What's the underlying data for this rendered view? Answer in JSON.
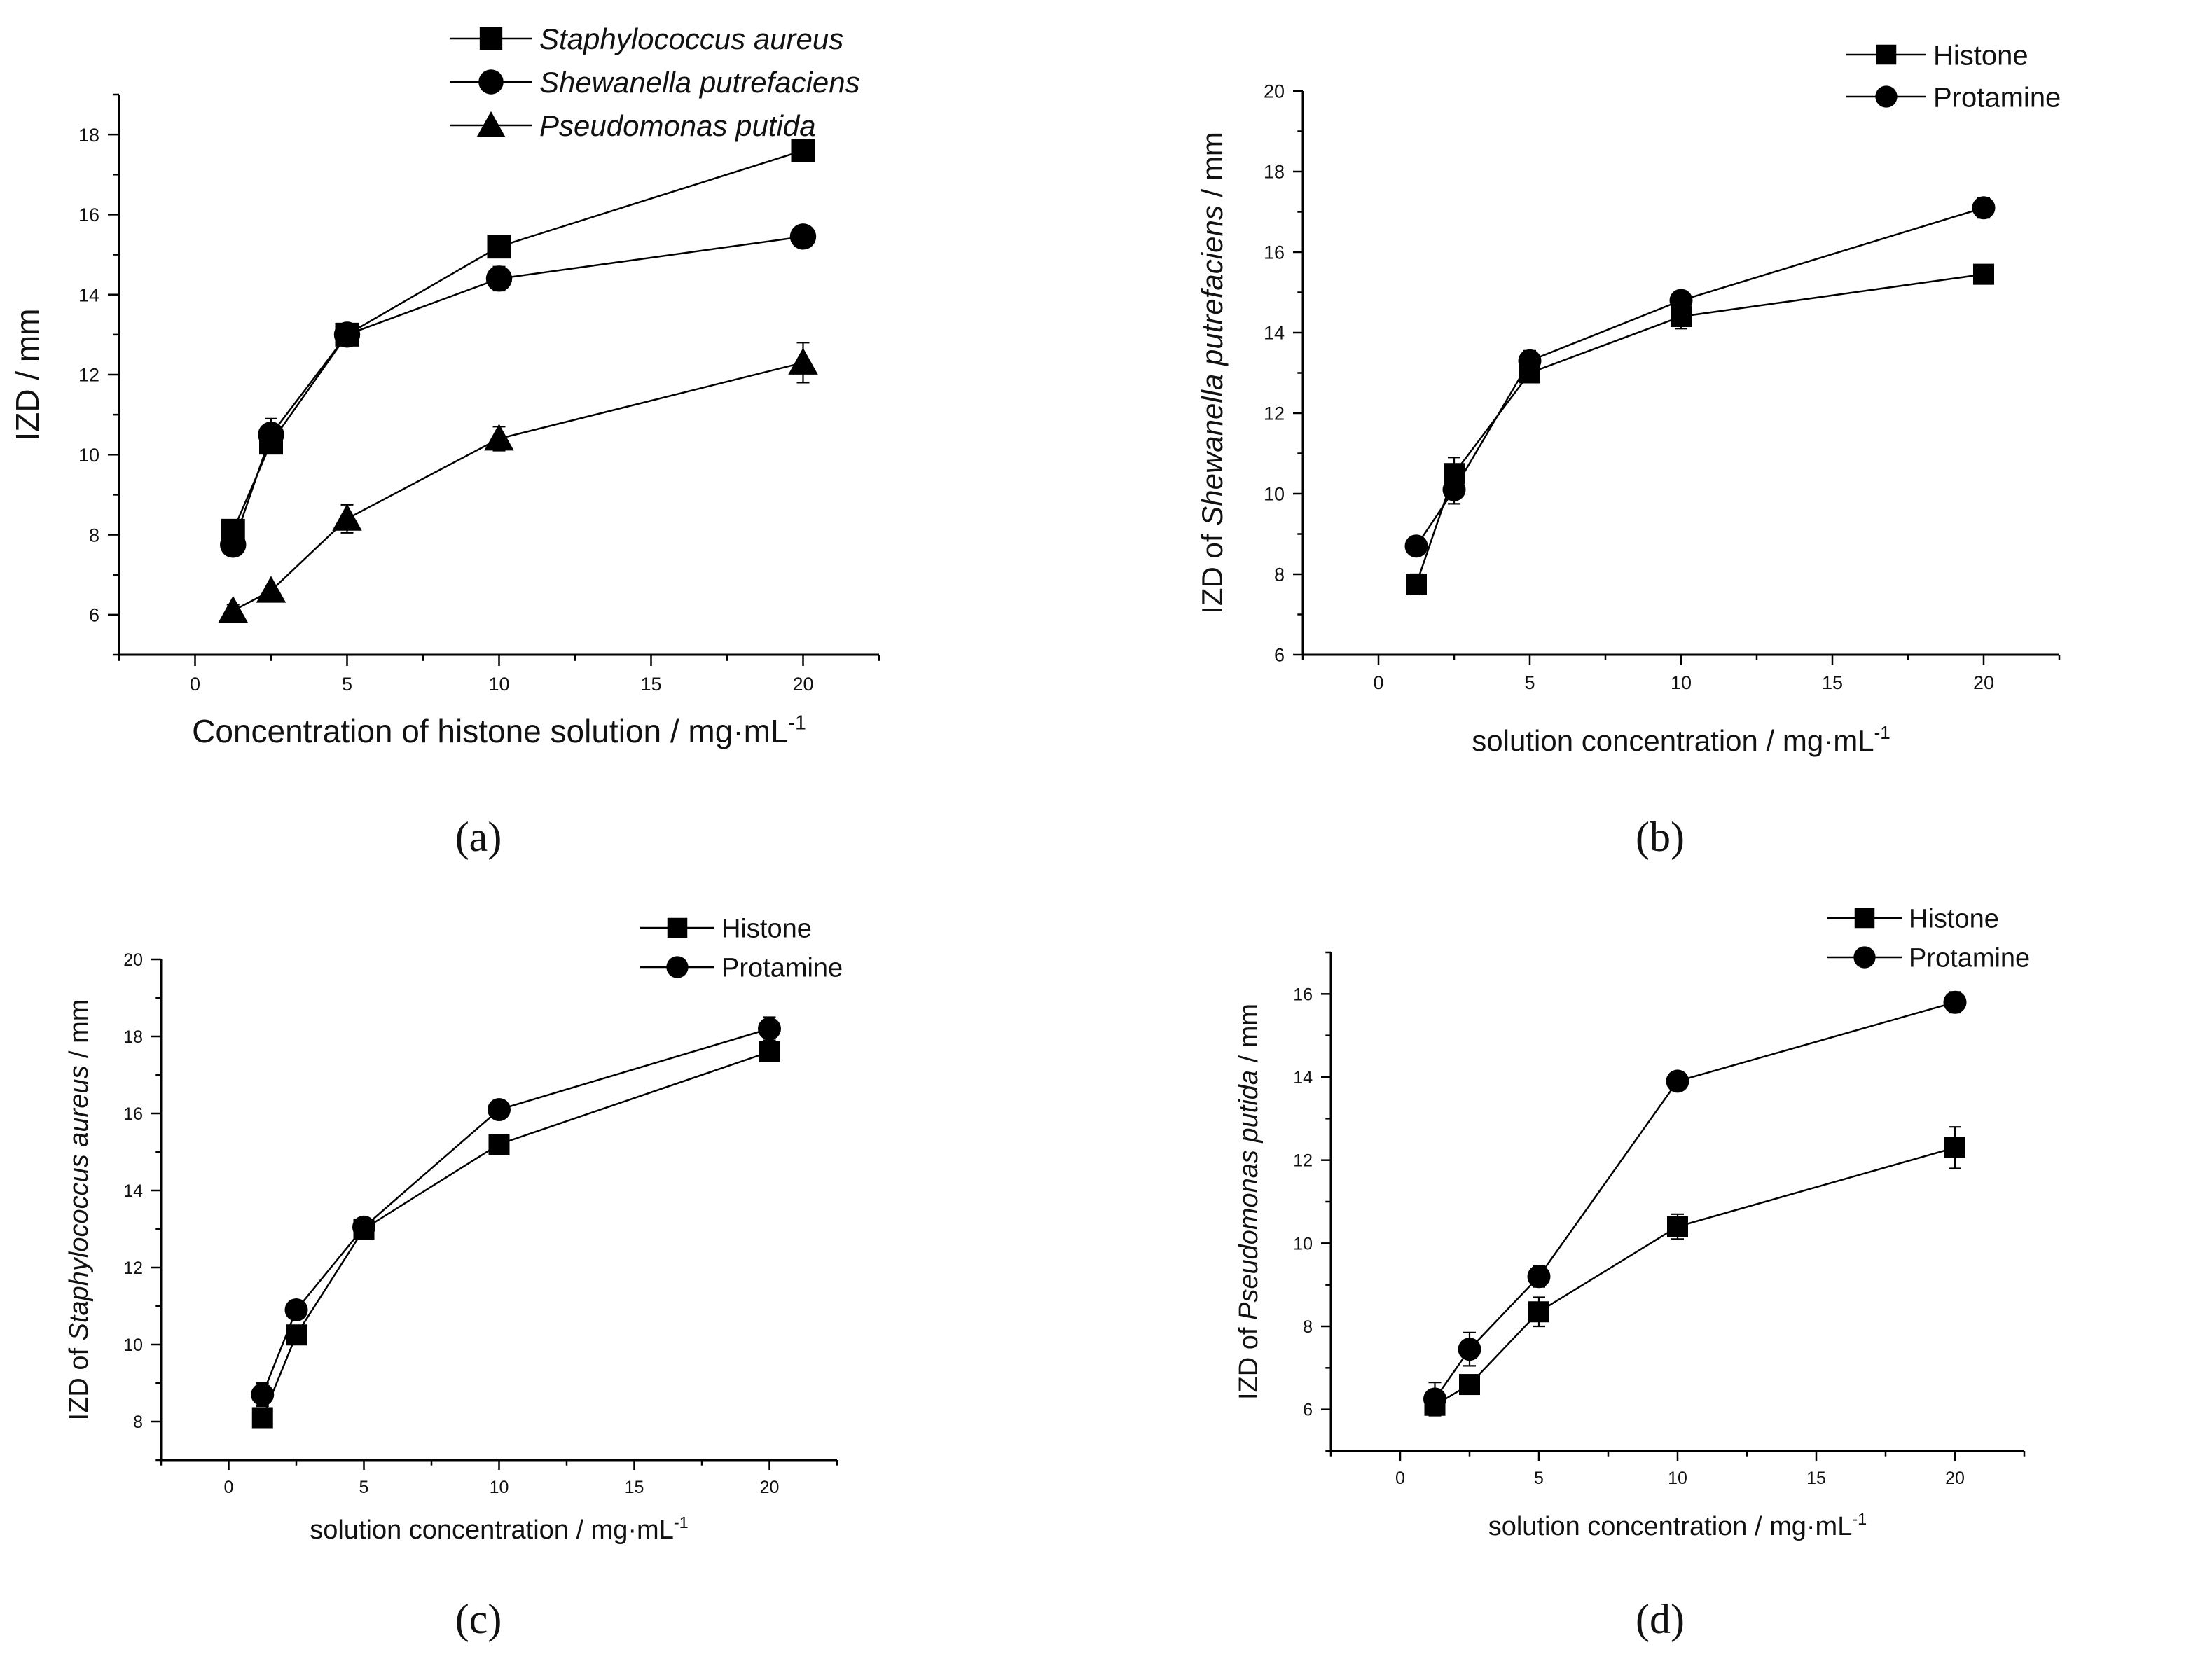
{
  "figure": {
    "panel_labels": [
      "(a)",
      "(b)",
      "(c)",
      "(d)"
    ]
  },
  "colors": {
    "line": "#000000",
    "background": "#ffffff"
  },
  "chart_data": [
    {
      "id": "a",
      "type": "line",
      "title": "",
      "xlabel": "Concentration of histone solution / mg·mL",
      "xlabel_sup": "-1",
      "ylabel": "IZD / mm",
      "xlim": [
        -2.5,
        22.5
      ],
      "ylim": [
        5,
        19
      ],
      "xticks": [
        0,
        5,
        10,
        15,
        20
      ],
      "yticks": [
        6,
        8,
        10,
        12,
        14,
        16,
        18
      ],
      "legend_position": "top-right",
      "series": [
        {
          "name": "Staphylococcus aureus",
          "italic": true,
          "marker": "square",
          "x": [
            1.25,
            2.5,
            5,
            10,
            20
          ],
          "y": [
            8.1,
            10.3,
            13.0,
            15.2,
            17.6
          ],
          "err": [
            0.15,
            0.15,
            0.1,
            0.1,
            0.2
          ]
        },
        {
          "name": "Shewanella putrefaciens",
          "italic": true,
          "marker": "circle",
          "x": [
            1.25,
            2.5,
            5,
            10,
            20
          ],
          "y": [
            7.75,
            10.5,
            13.0,
            14.4,
            15.45
          ],
          "err": [
            0.2,
            0.4,
            0.15,
            0.3,
            0.15
          ]
        },
        {
          "name": "Pseudomonas putida",
          "italic": true,
          "marker": "triangle",
          "x": [
            1.25,
            2.5,
            5,
            10,
            20
          ],
          "y": [
            6.1,
            6.6,
            8.4,
            10.4,
            12.3
          ],
          "err": [
            0.15,
            0.1,
            0.35,
            0.3,
            0.5
          ]
        }
      ]
    },
    {
      "id": "b",
      "type": "line",
      "title": "",
      "xlabel": "solution concentration / mg·mL",
      "xlabel_sup": "-1",
      "ylabel": "IZD of Shewanella putrefaciens / mm",
      "ylabel_parts": [
        "IZD of ",
        "Shewanella putrefaciens",
        " / mm"
      ],
      "xlim": [
        -2.5,
        22.5
      ],
      "ylim": [
        6,
        20
      ],
      "xticks": [
        0,
        5,
        10,
        15,
        20
      ],
      "yticks": [
        6,
        8,
        10,
        12,
        14,
        16,
        18,
        20
      ],
      "legend_position": "top-right",
      "series": [
        {
          "name": "Histone",
          "italic": false,
          "marker": "square",
          "x": [
            1.25,
            2.5,
            5,
            10,
            20
          ],
          "y": [
            7.75,
            10.5,
            13.0,
            14.4,
            15.45
          ],
          "err": [
            0.25,
            0.4,
            0.15,
            0.3,
            0.1
          ]
        },
        {
          "name": "Protamine",
          "italic": false,
          "marker": "circle",
          "x": [
            1.25,
            2.5,
            5,
            10,
            20
          ],
          "y": [
            8.7,
            10.1,
            13.3,
            14.8,
            17.1
          ],
          "err": [
            0.2,
            0.35,
            0.25,
            0.2,
            0.25
          ]
        }
      ]
    },
    {
      "id": "c",
      "type": "line",
      "title": "",
      "xlabel": "solution concentration / mg·mL",
      "xlabel_sup": "-1",
      "ylabel": "IZD of Staphylococcus aureus / mm",
      "ylabel_parts": [
        "IZD of ",
        "Staphylococcus aureus",
        " / mm"
      ],
      "xlim": [
        -2.5,
        22.5
      ],
      "ylim": [
        7,
        20
      ],
      "xticks": [
        0,
        5,
        10,
        15,
        20
      ],
      "yticks": [
        8,
        10,
        12,
        14,
        16,
        18,
        20
      ],
      "legend_position": "top-right",
      "series": [
        {
          "name": "Histone",
          "italic": false,
          "marker": "square",
          "x": [
            1.25,
            2.5,
            5,
            10,
            20
          ],
          "y": [
            8.1,
            10.25,
            13.0,
            15.2,
            17.6
          ],
          "err": [
            0.15,
            0.1,
            0.15,
            0.1,
            0.2
          ]
        },
        {
          "name": "Protamine",
          "italic": false,
          "marker": "circle",
          "x": [
            1.25,
            2.5,
            5,
            10,
            20
          ],
          "y": [
            8.7,
            10.9,
            13.05,
            16.1,
            18.2
          ],
          "err": [
            0.3,
            0.2,
            0.15,
            0.2,
            0.3
          ]
        }
      ]
    },
    {
      "id": "d",
      "type": "line",
      "title": "",
      "xlabel": "solution concentration / mg·mL",
      "xlabel_sup": "-1",
      "ylabel": "IZD of Pseudomonas putida / mm",
      "ylabel_parts": [
        "IZD of ",
        "Pseudomonas putida",
        " / mm"
      ],
      "xlim": [
        -2.5,
        22.5
      ],
      "ylim": [
        5,
        17
      ],
      "xticks": [
        0,
        5,
        10,
        15,
        20
      ],
      "yticks": [
        6,
        8,
        10,
        12,
        14,
        16
      ],
      "legend_position": "top-right",
      "series": [
        {
          "name": "Histone",
          "italic": false,
          "marker": "square",
          "x": [
            1.25,
            2.5,
            5,
            10,
            20
          ],
          "y": [
            6.1,
            6.6,
            8.35,
            10.4,
            12.3
          ],
          "err": [
            0.2,
            0.1,
            0.35,
            0.3,
            0.5
          ]
        },
        {
          "name": "Protamine",
          "italic": false,
          "marker": "circle",
          "x": [
            1.25,
            2.5,
            5,
            10,
            20
          ],
          "y": [
            6.25,
            7.45,
            9.2,
            13.9,
            15.8
          ],
          "err": [
            0.4,
            0.4,
            0.25,
            0.2,
            0.25
          ]
        }
      ]
    }
  ]
}
